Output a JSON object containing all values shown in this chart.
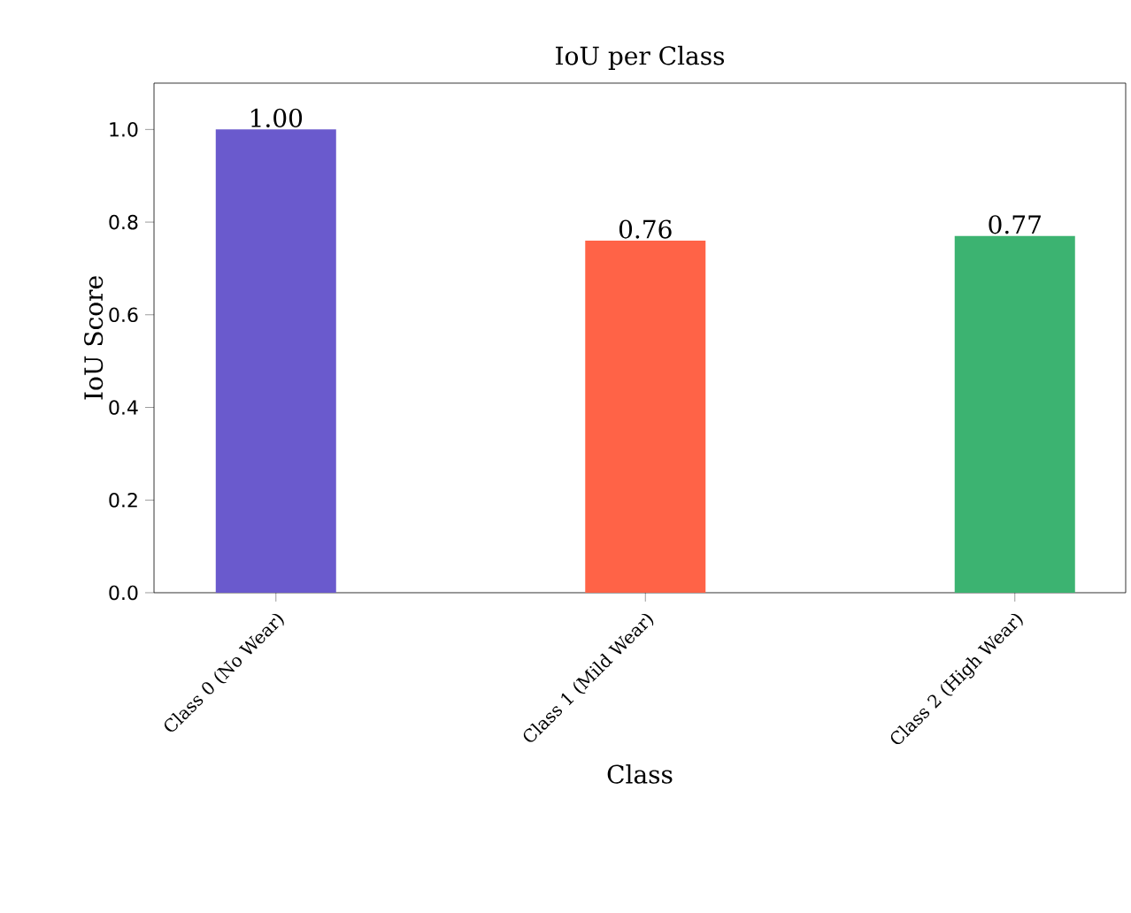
{
  "chart_data": {
    "type": "bar",
    "title": "IoU per Class",
    "xlabel": "Class",
    "ylabel": "IoU Score",
    "categories": [
      "Class 0 (No Wear)",
      "Class 1 (Mild Wear)",
      "Class 2 (High Wear)"
    ],
    "values": [
      1.0,
      0.76,
      0.77
    ],
    "colors": [
      "#6a5acd",
      "#ff6347",
      "#3cb371"
    ],
    "value_labels": [
      "1.00",
      "0.76",
      "0.77"
    ],
    "ylim": [
      0,
      1.1
    ],
    "yticks": [
      {
        "value": 0,
        "label": "0.0"
      },
      {
        "value": 0.2,
        "label": "0.2"
      },
      {
        "value": 0.4,
        "label": "0.4"
      },
      {
        "value": 0.6,
        "label": "0.6"
      },
      {
        "value": 0.8,
        "label": "0.8"
      },
      {
        "value": 1.0,
        "label": "1.0"
      }
    ],
    "grid": false
  }
}
